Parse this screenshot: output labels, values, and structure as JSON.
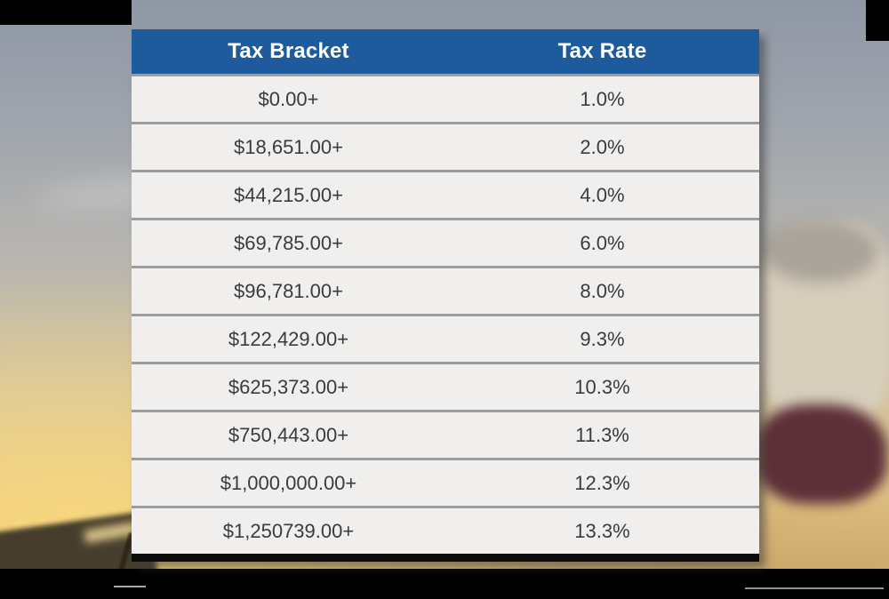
{
  "chart_data": {
    "type": "table",
    "columns": [
      "Tax Bracket",
      "Tax Rate"
    ],
    "rows": [
      [
        "$0.00+",
        "1.0%"
      ],
      [
        "$18,651.00+",
        "2.0%"
      ],
      [
        "$44,215.00+",
        "4.0%"
      ],
      [
        "$69,785.00+",
        "6.0%"
      ],
      [
        "$96,781.00+",
        "8.0%"
      ],
      [
        "$122,429.00+",
        "9.3%"
      ],
      [
        "$625,373.00+",
        "10.3%"
      ],
      [
        "$750,443.00+",
        "11.3%"
      ],
      [
        "$1,000,000.00+",
        "12.3%"
      ],
      [
        "$1,250739.00+",
        "13.3%"
      ]
    ],
    "layout_hints": {
      "header_position": "top",
      "grid": "horizontal-dividers",
      "columns_alignment": "center"
    },
    "colors": {
      "header_bg": "#1e5b9c",
      "header_text": "#ffffff",
      "row_bg": "#f0efee",
      "row_divider": "#9c9c9c",
      "cell_text": "#3b3b3b",
      "letterbox": "#000000"
    }
  }
}
